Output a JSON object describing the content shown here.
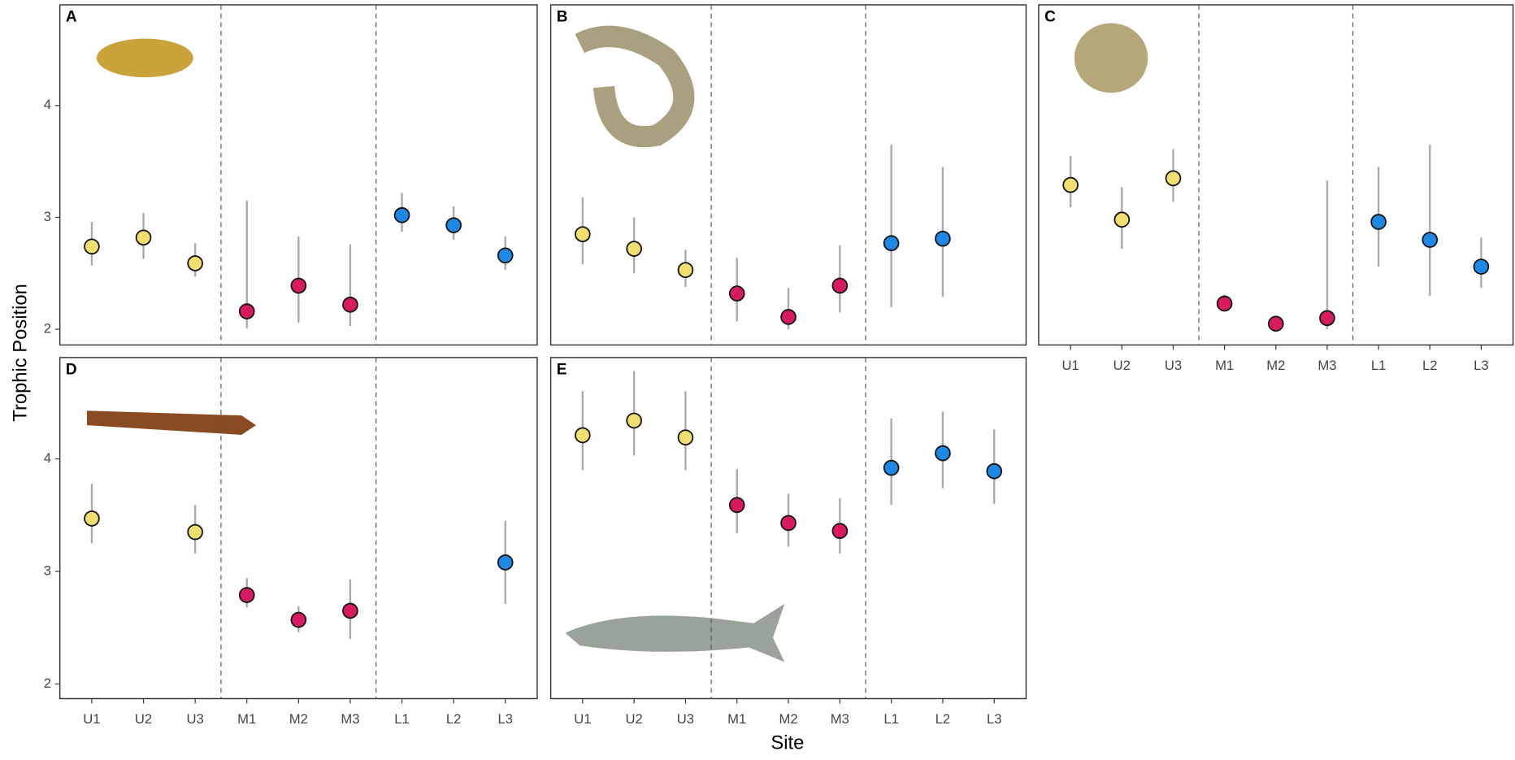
{
  "axis_labels": {
    "y": "Trophic Position",
    "x": "Site"
  },
  "chart_data": [
    {
      "type": "scatter",
      "title": "A",
      "ylim": [
        1.86,
        4.9
      ],
      "yticks": [
        2,
        3,
        4
      ],
      "values": [
        2.74,
        2.82,
        2.59,
        2.16,
        2.39,
        2.22,
        3.02,
        2.93,
        2.66
      ],
      "lower": [
        2.57,
        2.63,
        2.47,
        2.01,
        2.06,
        2.03,
        2.87,
        2.8,
        2.53
      ],
      "upper": [
        2.96,
        3.04,
        2.77,
        3.15,
        2.83,
        2.76,
        3.22,
        3.1,
        2.83
      ],
      "colors": [
        "#f0de6e",
        "#f0de6e",
        "#f0de6e",
        "#d81b60",
        "#d81b60",
        "#d81b60",
        "#1e88e5",
        "#1e88e5",
        "#1e88e5"
      ]
    },
    {
      "type": "scatter",
      "title": "B",
      "ylim": [
        1.86,
        4.9
      ],
      "values": [
        2.85,
        2.72,
        2.53,
        2.32,
        2.11,
        2.39,
        2.77,
        2.81,
        null
      ],
      "lower": [
        2.58,
        2.5,
        2.38,
        2.07,
        2.0,
        2.15,
        2.2,
        2.29,
        null
      ],
      "upper": [
        3.18,
        3.0,
        2.71,
        2.64,
        2.37,
        2.75,
        3.65,
        3.45,
        null
      ],
      "colors": [
        "#f0de6e",
        "#f0de6e",
        "#f0de6e",
        "#d81b60",
        "#d81b60",
        "#d81b60",
        "#1e88e5",
        "#1e88e5",
        "#1e88e5"
      ]
    },
    {
      "type": "scatter",
      "title": "C",
      "ylim": [
        1.86,
        4.9
      ],
      "categories": [
        "U1",
        "U2",
        "U3",
        "M1",
        "M2",
        "M3",
        "L1",
        "L2",
        "L3"
      ],
      "values": [
        3.29,
        2.98,
        3.35,
        2.23,
        2.05,
        2.1,
        2.96,
        2.8,
        2.56
      ],
      "lower": [
        3.09,
        2.72,
        3.14,
        2.16,
        1.99,
        2.0,
        2.56,
        2.3,
        2.37
      ],
      "upper": [
        3.55,
        3.27,
        3.61,
        2.31,
        2.09,
        3.33,
        3.45,
        3.65,
        2.82
      ],
      "colors": [
        "#f0de6e",
        "#f0de6e",
        "#f0de6e",
        "#d81b60",
        "#d81b60",
        "#d81b60",
        "#1e88e5",
        "#1e88e5",
        "#1e88e5"
      ]
    },
    {
      "type": "scatter",
      "title": "D",
      "ylim": [
        1.87,
        4.9
      ],
      "yticks": [
        2,
        3,
        4
      ],
      "categories": [
        "U1",
        "U2",
        "U3",
        "M1",
        "M2",
        "M3",
        "L1",
        "L2",
        "L3"
      ],
      "values": [
        3.47,
        null,
        3.35,
        2.79,
        2.57,
        2.65,
        null,
        null,
        3.08
      ],
      "lower": [
        3.25,
        null,
        3.16,
        2.68,
        2.46,
        2.4,
        null,
        null,
        2.71
      ],
      "upper": [
        3.78,
        null,
        3.59,
        2.94,
        2.69,
        2.93,
        null,
        null,
        3.45
      ],
      "colors": [
        "#f0de6e",
        "#f0de6e",
        "#f0de6e",
        "#d81b60",
        "#d81b60",
        "#d81b60",
        "#1e88e5",
        "#1e88e5",
        "#1e88e5"
      ]
    },
    {
      "type": "scatter",
      "title": "E",
      "ylim": [
        1.87,
        4.9
      ],
      "categories": [
        "U1",
        "U2",
        "U3",
        "M1",
        "M2",
        "M3",
        "L1",
        "L2",
        "L3"
      ],
      "values": [
        4.21,
        4.34,
        4.19,
        3.59,
        3.43,
        3.36,
        3.92,
        4.05,
        3.89
      ],
      "lower": [
        3.9,
        4.03,
        3.9,
        3.34,
        3.22,
        3.16,
        3.59,
        3.74,
        3.6
      ],
      "upper": [
        4.6,
        4.78,
        4.6,
        3.91,
        3.69,
        3.65,
        4.36,
        4.42,
        4.26
      ],
      "colors": [
        "#f0de6e",
        "#f0de6e",
        "#f0de6e",
        "#d81b60",
        "#d81b60",
        "#d81b60",
        "#1e88e5",
        "#1e88e5",
        "#1e88e5"
      ]
    }
  ]
}
